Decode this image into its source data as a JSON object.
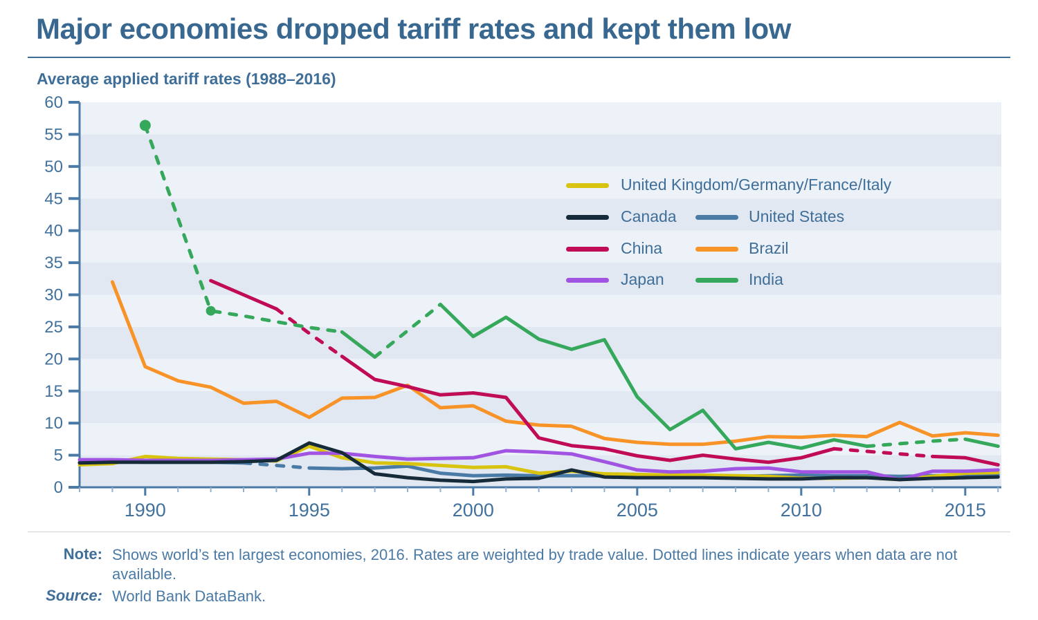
{
  "header": {
    "title": "Major economies dropped tariff rates and kept them low",
    "subtitle": "Average applied tariff rates (1988–2016)"
  },
  "footer": {
    "note_label": "Note:",
    "note_text": "Shows world’s ten largest economies, 2016. Rates are weighted by trade value. Dotted lines indicate years when data are not available.",
    "source_label": "Source:",
    "source_text": "World Bank DataBank."
  },
  "chart_data": {
    "type": "line",
    "title": "Average applied tariff rates (1988–2016)",
    "xlabel": "",
    "ylabel": "",
    "x_range": [
      1988,
      2016.1
    ],
    "ylim": [
      0,
      60
    ],
    "y_ticks": [
      0,
      5,
      10,
      15,
      20,
      25,
      30,
      35,
      40,
      45,
      50,
      55,
      60
    ],
    "x_ticks": [
      1990,
      1995,
      2000,
      2005,
      2010,
      2015
    ],
    "grid": "horizontal bands every 5 units, alternating shading",
    "legend_position": "upper right inside plot",
    "dash_meaning": "dotted/dashed segments = years when data are not available",
    "style": {
      "band_dark": "#e1e8f2",
      "band_light": "#edf2f9",
      "axis_color": "#4a7aa5",
      "minor_tick_color": "#93b1d0",
      "label_color": "#41719c"
    },
    "legend_rows": [
      [
        0
      ],
      [
        1,
        2
      ],
      [
        3,
        4
      ],
      [
        5,
        6
      ]
    ],
    "series": [
      {
        "name": "United Kingdom/Germany/France/Italy",
        "color": "#d8c40e",
        "points": [
          [
            1988,
            3.5
          ],
          [
            1989,
            3.7
          ],
          [
            1990,
            4.8
          ],
          [
            1991,
            4.5
          ],
          [
            1992,
            4.4
          ],
          [
            1993,
            4.3
          ],
          [
            1994,
            4.1
          ],
          [
            1995,
            6.4
          ],
          [
            1996,
            4.6
          ],
          [
            1997,
            3.8
          ],
          [
            1998,
            3.7
          ],
          [
            1999,
            3.4
          ],
          [
            2000,
            3.1
          ],
          [
            2001,
            3.2
          ],
          [
            2002,
            2.2
          ],
          [
            2003,
            2.5
          ],
          [
            2004,
            2.1
          ],
          [
            2005,
            2.0
          ],
          [
            2006,
            1.9
          ],
          [
            2007,
            1.9
          ],
          [
            2008,
            1.8
          ],
          [
            2009,
            1.7
          ],
          [
            2010,
            1.4
          ],
          [
            2011,
            1.4
          ],
          [
            2012,
            1.5
          ],
          [
            2013,
            1.2
          ],
          [
            2014,
            1.7
          ],
          [
            2015,
            2.2
          ],
          [
            2016,
            2.3
          ]
        ],
        "dash_ranges": [],
        "markers": []
      },
      {
        "name": "Canada",
        "color": "#162b3a",
        "points": [
          [
            1988,
            3.8
          ],
          [
            1989,
            3.9
          ],
          [
            1990,
            3.9
          ],
          [
            1991,
            3.9
          ],
          [
            1992,
            3.9
          ],
          [
            1993,
            4.0
          ],
          [
            1994,
            4.2
          ],
          [
            1995,
            6.9
          ],
          [
            1996,
            5.4
          ],
          [
            1997,
            2.1
          ],
          [
            1998,
            1.5
          ],
          [
            1999,
            1.1
          ],
          [
            2000,
            0.9
          ],
          [
            2001,
            1.3
          ],
          [
            2002,
            1.4
          ],
          [
            2003,
            2.7
          ],
          [
            2004,
            1.6
          ],
          [
            2005,
            1.5
          ],
          [
            2006,
            1.5
          ],
          [
            2007,
            1.5
          ],
          [
            2008,
            1.4
          ],
          [
            2009,
            1.3
          ],
          [
            2010,
            1.3
          ],
          [
            2011,
            1.5
          ],
          [
            2012,
            1.5
          ],
          [
            2013,
            1.2
          ],
          [
            2014,
            1.4
          ],
          [
            2015,
            1.5
          ],
          [
            2016,
            1.6
          ]
        ],
        "dash_ranges": [],
        "markers": []
      },
      {
        "name": "United States",
        "color": "#4a7ba6",
        "points": [
          [
            1988,
            3.9
          ],
          [
            1989,
            4.0
          ],
          [
            1990,
            3.9
          ],
          [
            1991,
            3.9
          ],
          [
            1992,
            3.9
          ],
          [
            1993,
            3.8
          ],
          [
            1994,
            3.4
          ],
          [
            1995,
            3.0
          ],
          [
            1996,
            2.9
          ],
          [
            1997,
            3.0
          ],
          [
            1998,
            3.3
          ],
          [
            1999,
            2.2
          ],
          [
            2000,
            1.8
          ],
          [
            2001,
            1.9
          ],
          [
            2002,
            1.8
          ],
          [
            2003,
            1.8
          ],
          [
            2004,
            1.8
          ],
          [
            2005,
            1.7
          ],
          [
            2006,
            1.7
          ],
          [
            2007,
            1.7
          ],
          [
            2008,
            1.7
          ],
          [
            2009,
            1.8
          ],
          [
            2010,
            1.9
          ],
          [
            2011,
            1.8
          ],
          [
            2012,
            1.8
          ],
          [
            2013,
            1.7
          ],
          [
            2014,
            1.8
          ],
          [
            2015,
            1.8
          ],
          [
            2016,
            1.9
          ]
        ],
        "dash_ranges": [
          [
            1993,
            1995
          ]
        ],
        "markers": []
      },
      {
        "name": "China",
        "color": "#c00c56",
        "points": [
          [
            1992,
            32.2
          ],
          [
            1993,
            30.0
          ],
          [
            1994,
            27.8
          ],
          [
            1995,
            24.0
          ],
          [
            1996,
            20.4
          ],
          [
            1997,
            16.8
          ],
          [
            1998,
            15.7
          ],
          [
            1999,
            14.4
          ],
          [
            2000,
            14.7
          ],
          [
            2001,
            14.0
          ],
          [
            2002,
            7.7
          ],
          [
            2003,
            6.5
          ],
          [
            2004,
            6.0
          ],
          [
            2005,
            4.9
          ],
          [
            2006,
            4.2
          ],
          [
            2007,
            5.0
          ],
          [
            2008,
            4.4
          ],
          [
            2009,
            3.9
          ],
          [
            2010,
            4.6
          ],
          [
            2011,
            6.0
          ],
          [
            2012,
            5.6
          ],
          [
            2013,
            5.2
          ],
          [
            2014,
            4.8
          ],
          [
            2015,
            4.6
          ],
          [
            2016,
            3.5
          ]
        ],
        "dash_ranges": [
          [
            1994,
            1996
          ],
          [
            2011,
            2014
          ]
        ],
        "markers": []
      },
      {
        "name": "Brazil",
        "color": "#f89328",
        "points": [
          [
            1989,
            32.0
          ],
          [
            1990,
            18.8
          ],
          [
            1991,
            16.6
          ],
          [
            1992,
            15.6
          ],
          [
            1993,
            13.1
          ],
          [
            1994,
            13.4
          ],
          [
            1995,
            10.9
          ],
          [
            1996,
            13.9
          ],
          [
            1997,
            14.0
          ],
          [
            1998,
            15.9
          ],
          [
            1999,
            12.4
          ],
          [
            2000,
            12.7
          ],
          [
            2001,
            10.3
          ],
          [
            2002,
            9.7
          ],
          [
            2003,
            9.5
          ],
          [
            2004,
            7.6
          ],
          [
            2005,
            7.0
          ],
          [
            2006,
            6.7
          ],
          [
            2007,
            6.7
          ],
          [
            2008,
            7.2
          ],
          [
            2009,
            7.9
          ],
          [
            2010,
            7.8
          ],
          [
            2011,
            8.1
          ],
          [
            2012,
            7.9
          ],
          [
            2013,
            10.1
          ],
          [
            2014,
            8.0
          ],
          [
            2015,
            8.5
          ],
          [
            2016,
            8.1
          ]
        ],
        "dash_ranges": [],
        "markers": []
      },
      {
        "name": "Japan",
        "color": "#a153e2",
        "points": [
          [
            1988,
            4.3
          ],
          [
            1989,
            4.3
          ],
          [
            1990,
            4.2
          ],
          [
            1991,
            4.2
          ],
          [
            1992,
            4.2
          ],
          [
            1993,
            4.3
          ],
          [
            1994,
            4.4
          ],
          [
            1995,
            5.3
          ],
          [
            1996,
            5.3
          ],
          [
            1997,
            4.8
          ],
          [
            1998,
            4.4
          ],
          [
            1999,
            4.5
          ],
          [
            2000,
            4.6
          ],
          [
            2001,
            5.7
          ],
          [
            2002,
            5.5
          ],
          [
            2003,
            5.2
          ],
          [
            2004,
            4.0
          ],
          [
            2005,
            2.7
          ],
          [
            2006,
            2.4
          ],
          [
            2007,
            2.5
          ],
          [
            2008,
            2.9
          ],
          [
            2009,
            3.0
          ],
          [
            2010,
            2.4
          ],
          [
            2011,
            2.4
          ],
          [
            2012,
            2.4
          ],
          [
            2013,
            1.2
          ],
          [
            2014,
            2.5
          ],
          [
            2015,
            2.5
          ],
          [
            2016,
            2.7
          ]
        ],
        "dash_ranges": [],
        "markers": []
      },
      {
        "name": "India",
        "color": "#36a85c",
        "points": [
          [
            1990,
            56.4
          ],
          [
            1992,
            27.5
          ],
          [
            1993,
            26.7
          ],
          [
            1994,
            25.8
          ],
          [
            1995,
            24.9
          ],
          [
            1996,
            24.2
          ],
          [
            1997,
            20.3
          ],
          [
            1998,
            24.4
          ],
          [
            1999,
            28.5
          ],
          [
            2000,
            23.5
          ],
          [
            2001,
            26.5
          ],
          [
            2002,
            23.1
          ],
          [
            2003,
            21.5
          ],
          [
            2004,
            23.0
          ],
          [
            2005,
            14.1
          ],
          [
            2006,
            9.0
          ],
          [
            2007,
            12.0
          ],
          [
            2008,
            6.0
          ],
          [
            2009,
            7.0
          ],
          [
            2010,
            6.1
          ],
          [
            2011,
            7.4
          ],
          [
            2012,
            6.4
          ],
          [
            2013,
            6.8
          ],
          [
            2014,
            7.2
          ],
          [
            2015,
            7.5
          ],
          [
            2016,
            6.4
          ]
        ],
        "dash_ranges": [
          [
            1990,
            1996
          ],
          [
            1997,
            1999
          ],
          [
            2012,
            2015
          ]
        ],
        "markers": [
          1990,
          1992
        ]
      }
    ]
  }
}
